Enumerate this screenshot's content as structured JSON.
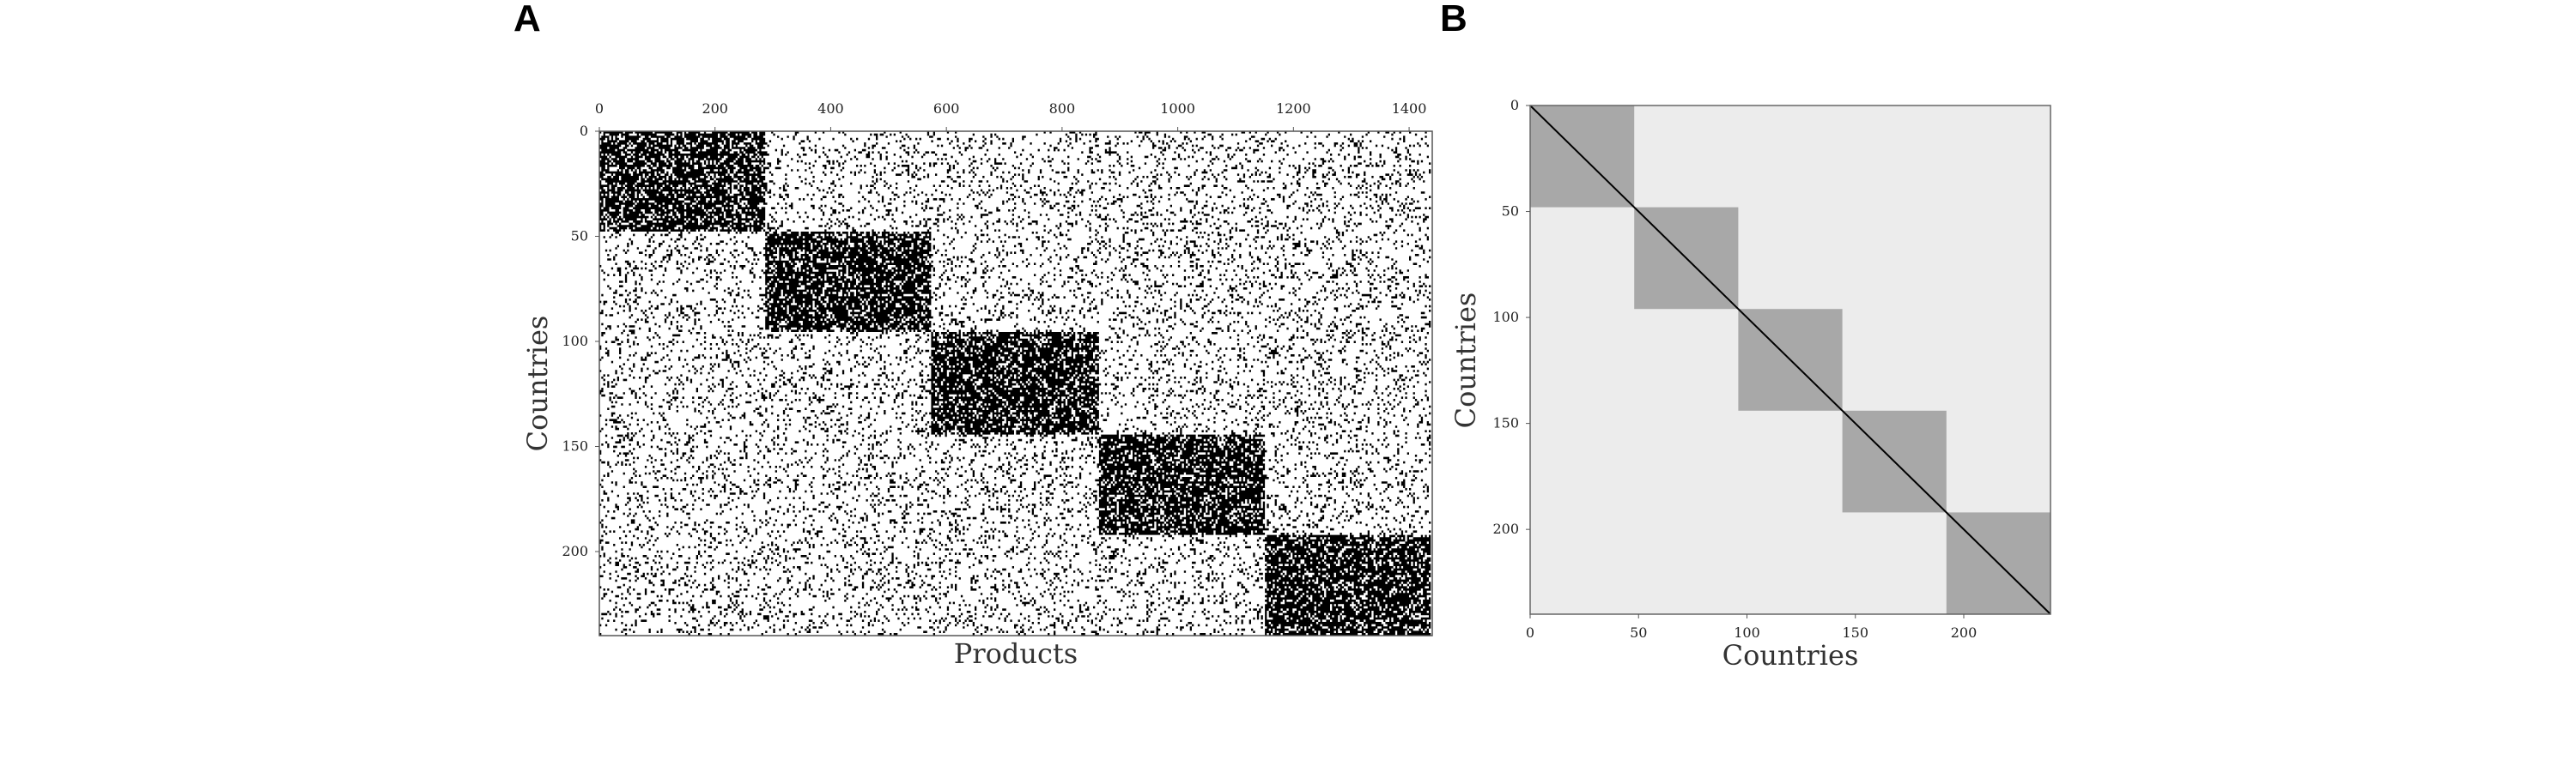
{
  "chart_data": [
    {
      "type": "heatmap",
      "panel_label": "A",
      "xlabel": "Products",
      "ylabel": "Countries",
      "x_axis_position": "top",
      "xlim": [
        0,
        1440
      ],
      "ylim": [
        0,
        240
      ],
      "x_ticks": [
        "0",
        "200",
        "400",
        "600",
        "800",
        "1000",
        "1200",
        "1400"
      ],
      "y_ticks": [
        "0",
        "50",
        "100",
        "150",
        "200"
      ],
      "colors": {
        "present": "#000000",
        "absent": "#ffffff"
      },
      "blocks": [
        {
          "rows": [
            0,
            48
          ],
          "cols": [
            0,
            288
          ],
          "density": 0.75
        },
        {
          "rows": [
            48,
            96
          ],
          "cols": [
            288,
            576
          ],
          "density": 0.75
        },
        {
          "rows": [
            96,
            144
          ],
          "cols": [
            576,
            864
          ],
          "density": 0.75
        },
        {
          "rows": [
            144,
            192
          ],
          "cols": [
            864,
            1152
          ],
          "density": 0.75
        },
        {
          "rows": [
            192,
            240
          ],
          "cols": [
            1152,
            1440
          ],
          "density": 0.75
        }
      ],
      "background_density": 0.14
    },
    {
      "type": "heatmap",
      "panel_label": "B",
      "xlabel": "Countries",
      "ylabel": "Countries",
      "xlim": [
        0,
        240
      ],
      "ylim": [
        0,
        240
      ],
      "x_ticks": [
        "0",
        "50",
        "100",
        "150",
        "200"
      ],
      "y_ticks": [
        "0",
        "50",
        "100",
        "150",
        "200"
      ],
      "colors": {
        "block": "#a8a8a8",
        "background": "#ececec",
        "diagonal": "#000000"
      },
      "blocks": [
        {
          "start": 0,
          "end": 48
        },
        {
          "start": 48,
          "end": 96
        },
        {
          "start": 96,
          "end": 144
        },
        {
          "start": 144,
          "end": 192
        },
        {
          "start": 192,
          "end": 240
        }
      ],
      "diagonal": true
    }
  ]
}
